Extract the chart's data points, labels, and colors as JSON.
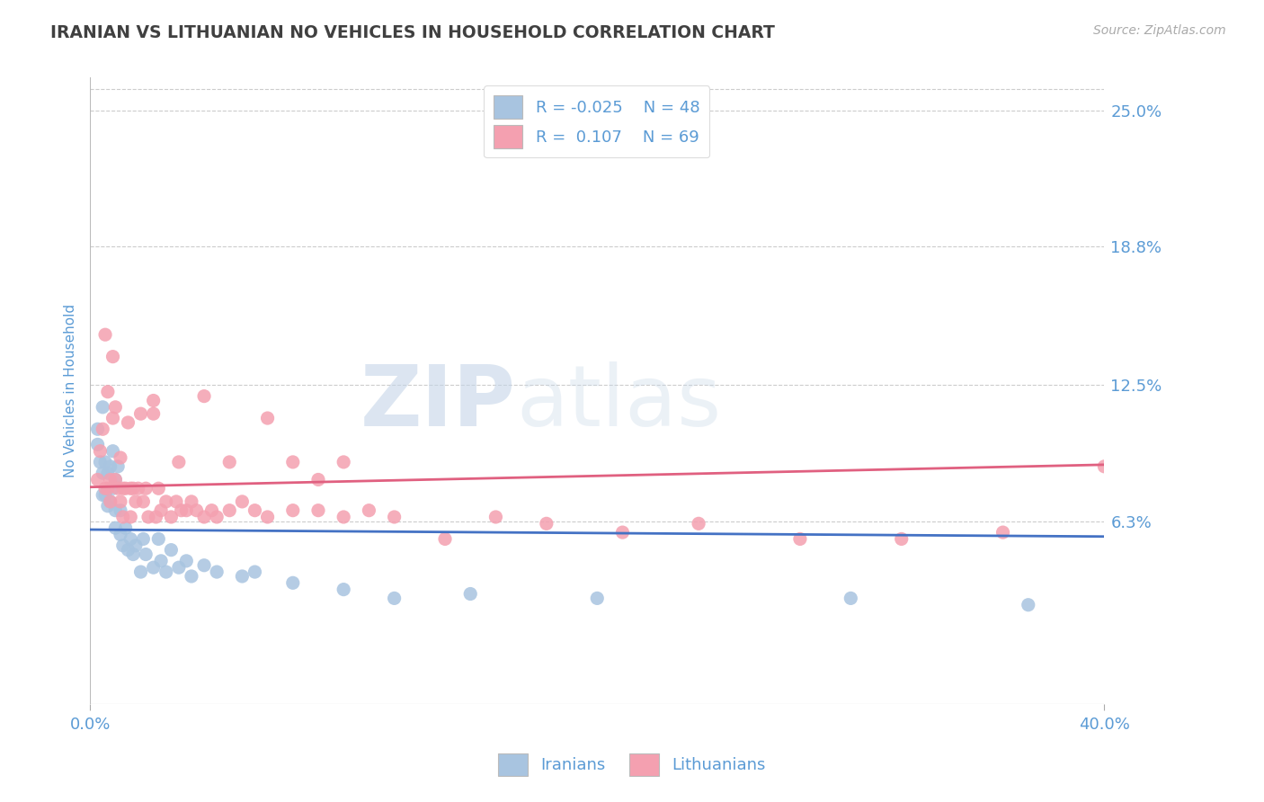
{
  "title": "IRANIAN VS LITHUANIAN NO VEHICLES IN HOUSEHOLD CORRELATION CHART",
  "source": "Source: ZipAtlas.com",
  "ylabel": "No Vehicles in Household",
  "x_min": 0.0,
  "x_max": 0.4,
  "y_min": -0.02,
  "y_max": 0.265,
  "y_ticks": [
    0.063,
    0.125,
    0.188,
    0.25
  ],
  "y_tick_labels": [
    "6.3%",
    "12.5%",
    "18.8%",
    "25.0%"
  ],
  "iranian_R": -0.025,
  "iranian_N": 48,
  "lithuanian_R": 0.107,
  "lithuanian_N": 69,
  "iranian_color": "#a8c4e0",
  "lithuanian_color": "#f4a0b0",
  "iranian_line_color": "#4472c4",
  "lithuanian_line_color": "#e06080",
  "legend_label_iranian": "Iranians",
  "legend_label_lithuanian": "Lithuanians",
  "watermark_zip": "ZIP",
  "watermark_atlas": "atlas",
  "background_color": "#ffffff",
  "grid_color": "#cccccc",
  "title_color": "#404040",
  "axis_label_color": "#5b9bd5",
  "tick_color": "#5b9bd5",
  "iranian_scatter_x": [
    0.003,
    0.003,
    0.004,
    0.005,
    0.005,
    0.005,
    0.006,
    0.006,
    0.007,
    0.007,
    0.008,
    0.008,
    0.009,
    0.009,
    0.01,
    0.01,
    0.01,
    0.011,
    0.012,
    0.012,
    0.013,
    0.014,
    0.015,
    0.016,
    0.017,
    0.018,
    0.02,
    0.021,
    0.022,
    0.025,
    0.027,
    0.028,
    0.03,
    0.032,
    0.035,
    0.038,
    0.04,
    0.045,
    0.05,
    0.06,
    0.065,
    0.08,
    0.1,
    0.12,
    0.15,
    0.2,
    0.3,
    0.37
  ],
  "iranian_scatter_y": [
    0.098,
    0.105,
    0.09,
    0.115,
    0.085,
    0.075,
    0.09,
    0.075,
    0.085,
    0.07,
    0.088,
    0.072,
    0.095,
    0.078,
    0.082,
    0.068,
    0.06,
    0.088,
    0.068,
    0.057,
    0.052,
    0.06,
    0.05,
    0.055,
    0.048,
    0.052,
    0.04,
    0.055,
    0.048,
    0.042,
    0.055,
    0.045,
    0.04,
    0.05,
    0.042,
    0.045,
    0.038,
    0.043,
    0.04,
    0.038,
    0.04,
    0.035,
    0.032,
    0.028,
    0.03,
    0.028,
    0.028,
    0.025
  ],
  "lithuanian_scatter_x": [
    0.003,
    0.004,
    0.005,
    0.006,
    0.006,
    0.007,
    0.007,
    0.008,
    0.008,
    0.009,
    0.009,
    0.01,
    0.01,
    0.011,
    0.012,
    0.012,
    0.013,
    0.013,
    0.014,
    0.015,
    0.016,
    0.016,
    0.017,
    0.018,
    0.019,
    0.02,
    0.021,
    0.022,
    0.023,
    0.025,
    0.026,
    0.027,
    0.028,
    0.03,
    0.032,
    0.034,
    0.036,
    0.038,
    0.04,
    0.042,
    0.045,
    0.048,
    0.05,
    0.055,
    0.06,
    0.065,
    0.07,
    0.08,
    0.09,
    0.1,
    0.11,
    0.12,
    0.14,
    0.16,
    0.18,
    0.21,
    0.24,
    0.28,
    0.32,
    0.36,
    0.4,
    0.025,
    0.035,
    0.045,
    0.055,
    0.07,
    0.08,
    0.09,
    0.1
  ],
  "lithuanian_scatter_y": [
    0.082,
    0.095,
    0.105,
    0.148,
    0.078,
    0.122,
    0.078,
    0.082,
    0.072,
    0.138,
    0.11,
    0.115,
    0.082,
    0.078,
    0.092,
    0.072,
    0.078,
    0.065,
    0.078,
    0.108,
    0.078,
    0.065,
    0.078,
    0.072,
    0.078,
    0.112,
    0.072,
    0.078,
    0.065,
    0.112,
    0.065,
    0.078,
    0.068,
    0.072,
    0.065,
    0.072,
    0.068,
    0.068,
    0.072,
    0.068,
    0.065,
    0.068,
    0.065,
    0.068,
    0.072,
    0.068,
    0.065,
    0.068,
    0.068,
    0.065,
    0.068,
    0.065,
    0.055,
    0.065,
    0.062,
    0.058,
    0.062,
    0.055,
    0.055,
    0.058,
    0.088,
    0.118,
    0.09,
    0.12,
    0.09,
    0.11,
    0.09,
    0.082,
    0.09
  ]
}
